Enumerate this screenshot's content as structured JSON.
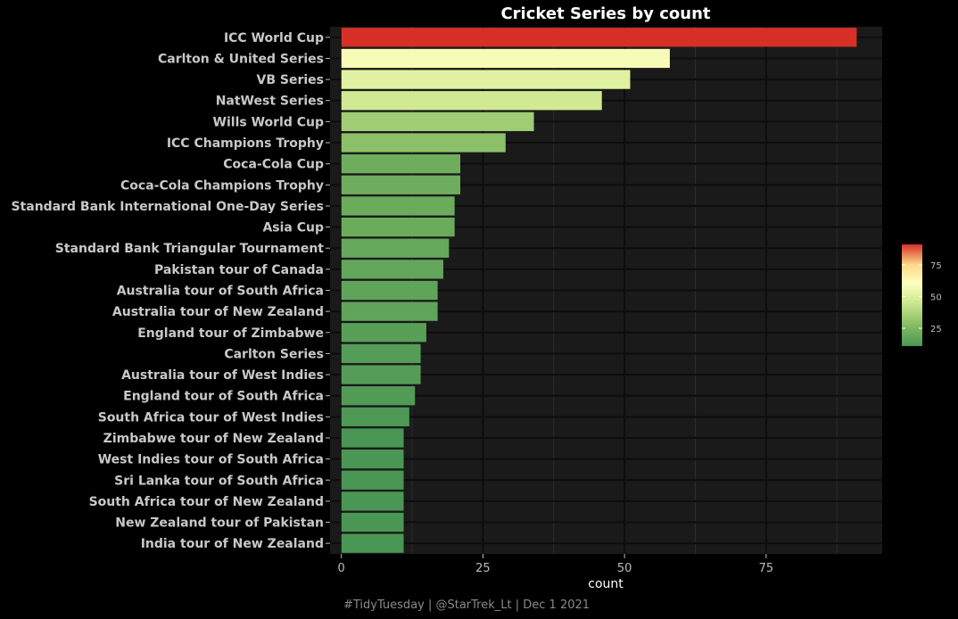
{
  "chart_data": {
    "type": "bar",
    "orientation": "horizontal",
    "title": "Cricket Series by count",
    "xlabel": "count",
    "ylabel": "",
    "xlim": [
      -2,
      95.5
    ],
    "xticks": [
      0,
      25,
      50,
      75
    ],
    "grid": true,
    "caption": "#TidyTuesday | @StarTrek_Lt | Dec 1 2021",
    "categories": [
      "ICC World Cup",
      "Carlton & United Series",
      "VB Series",
      "NatWest Series",
      "Wills World Cup",
      "ICC Champions Trophy",
      "Coca-Cola Cup",
      "Coca-Cola Champions Trophy",
      "Standard Bank International One-Day Series",
      "Asia Cup",
      "Standard Bank Triangular Tournament",
      "Pakistan tour of Canada",
      "Australia tour of South Africa",
      "Australia tour of New Zealand",
      "England tour of Zimbabwe",
      "Carlton Series",
      "Australia tour of West Indies",
      "England tour of South Africa",
      "South Africa tour of West Indies",
      "Zimbabwe tour of New Zealand",
      "West Indies tour of South Africa",
      "Sri Lanka tour of South Africa",
      "South Africa tour of New Zealand",
      "New Zealand tour of Pakistan",
      "India tour of New Zealand"
    ],
    "values": [
      91,
      58,
      51,
      46,
      34,
      29,
      21,
      21,
      20,
      20,
      19,
      18,
      17,
      17,
      15,
      14,
      14,
      13,
      12,
      11,
      11,
      11,
      11,
      11,
      11
    ],
    "legend": {
      "position": "right",
      "min": 11,
      "max": 91,
      "ticks": [
        25,
        50,
        75
      ],
      "colors": [
        "#4a9654",
        "#a6d96a",
        "#ffffbf",
        "#fdae61",
        "#d73027"
      ]
    }
  }
}
